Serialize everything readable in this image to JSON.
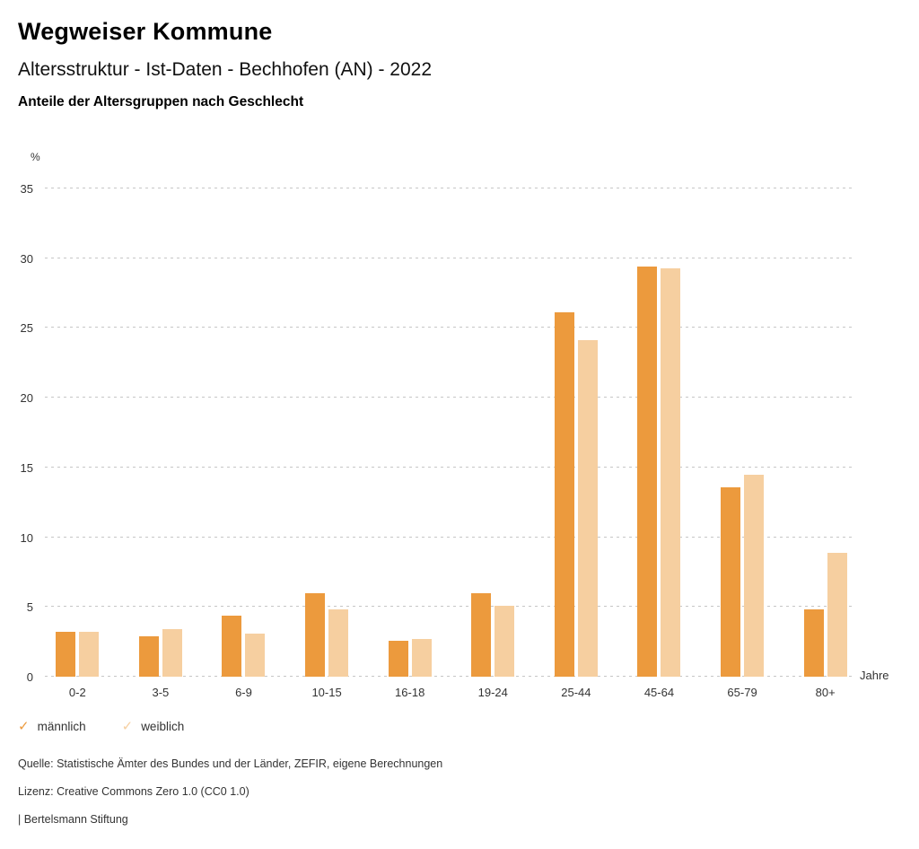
{
  "header": {
    "title": "Wegweiser Kommune",
    "subtitle": "Altersstruktur - Ist-Daten - Bechhofen (AN) - 2022",
    "subsubtitle": "Anteile der Altersgruppen nach Geschlecht"
  },
  "chart_data": {
    "type": "bar",
    "title": "Anteile der Altersgruppen nach Geschlecht",
    "unit_label": "%",
    "x_axis_label": "Jahre",
    "categories": [
      "0-2",
      "3-5",
      "6-9",
      "10-15",
      "16-18",
      "19-24",
      "25-44",
      "45-64",
      "65-79",
      "80+"
    ],
    "series": [
      {
        "name": "männlich",
        "color": "#EC9A3D",
        "values": [
          3.2,
          2.9,
          4.4,
          6.0,
          2.6,
          6.0,
          26.1,
          29.4,
          13.6,
          4.8
        ]
      },
      {
        "name": "weiblich",
        "color": "#F6CFA0",
        "values": [
          3.2,
          3.4,
          3.1,
          4.8,
          2.7,
          5.1,
          24.1,
          29.3,
          14.5,
          8.9
        ]
      }
    ],
    "y_ticks": [
      0,
      5,
      10,
      15,
      20,
      25,
      30,
      35
    ],
    "ylim": [
      0,
      35
    ],
    "grid": "dotted-horizontal",
    "gridline_color": "#C6C6C6",
    "legend_position": "bottom-left"
  },
  "legend": {
    "items": [
      {
        "label": "männlich",
        "color": "#EC9A3D",
        "check_icon": "✓"
      },
      {
        "label": "weiblich",
        "color": "#F6CFA0",
        "check_icon": "✓"
      }
    ]
  },
  "footer": {
    "source": "Quelle: Statistische Ämter des Bundes und der Länder, ZEFIR, eigene Berechnungen",
    "license": "Lizenz: Creative Commons Zero 1.0 (CC0 1.0)",
    "attribution": "| Bertelsmann Stiftung"
  }
}
